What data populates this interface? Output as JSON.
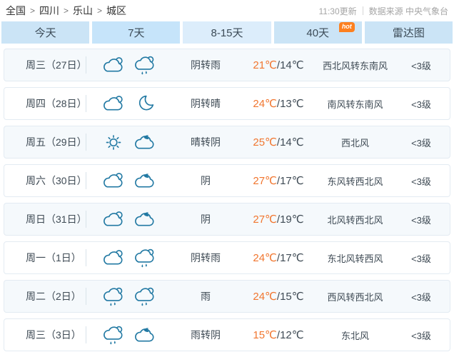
{
  "breadcrumb": {
    "items": [
      "全国",
      "四川",
      "乐山",
      "城区"
    ],
    "separator": ">"
  },
  "update": {
    "time_text": "11:30更新",
    "source_text": "数据来源 中央气象台"
  },
  "tabs": [
    {
      "label": "今天"
    },
    {
      "label": "7天",
      "variant": "active"
    },
    {
      "label": "8-15天",
      "variant": "light"
    },
    {
      "label": "40天",
      "badge": "hot"
    },
    {
      "label": "雷达图"
    }
  ],
  "colors": {
    "tab_bg": "#cbe4f6",
    "tab_light_bg": "#dcedfb",
    "hot_badge": "#fd801f",
    "temp_high": "#f1762f",
    "icon_stroke": "#2279a3",
    "row_alt_bg": "#f5f9fc"
  },
  "forecast": {
    "temp_separator": "/",
    "rows": [
      {
        "day": "周三（27日）",
        "icons": [
          "cloud",
          "rain"
        ],
        "weather": "阴转雨",
        "temp_high": "21℃",
        "temp_low": "14℃",
        "wind": "西北风转东南风",
        "level": "<3级"
      },
      {
        "day": "周四（28日）",
        "icons": [
          "cloud",
          "moon"
        ],
        "weather": "阴转晴",
        "temp_high": "24℃",
        "temp_low": "13℃",
        "wind": "南风转东南风",
        "level": "<3级"
      },
      {
        "day": "周五（29日）",
        "icons": [
          "sun",
          "cloud-dark"
        ],
        "weather": "晴转阴",
        "temp_high": "25℃",
        "temp_low": "14℃",
        "wind": "西北风",
        "level": "<3级"
      },
      {
        "day": "周六（30日）",
        "icons": [
          "cloud",
          "cloud-dark"
        ],
        "weather": "阴",
        "temp_high": "27℃",
        "temp_low": "17℃",
        "wind": "东风转西北风",
        "level": "<3级"
      },
      {
        "day": "周日（31日）",
        "icons": [
          "cloud",
          "cloud-dark"
        ],
        "weather": "阴",
        "temp_high": "27℃",
        "temp_low": "19℃",
        "wind": "北风转西北风",
        "level": "<3级"
      },
      {
        "day": "周一（1日）",
        "icons": [
          "cloud",
          "rain"
        ],
        "weather": "阴转雨",
        "temp_high": "24℃",
        "temp_low": "17℃",
        "wind": "东北风转西风",
        "level": "<3级"
      },
      {
        "day": "周二（2日）",
        "icons": [
          "rain",
          "rain"
        ],
        "weather": "雨",
        "temp_high": "24℃",
        "temp_low": "15℃",
        "wind": "西风转西北风",
        "level": "<3级"
      },
      {
        "day": "周三（3日）",
        "icons": [
          "rain",
          "cloud-dark"
        ],
        "weather": "雨转阴",
        "temp_high": "15℃",
        "temp_low": "12℃",
        "wind": "东北风",
        "level": "<3级"
      }
    ]
  }
}
